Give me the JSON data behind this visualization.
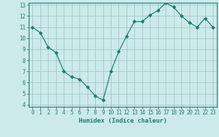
{
  "x": [
    0,
    1,
    2,
    3,
    4,
    5,
    6,
    7,
    8,
    9,
    10,
    11,
    12,
    13,
    14,
    15,
    16,
    17,
    18,
    19,
    20,
    21,
    22,
    23
  ],
  "y": [
    11,
    10.5,
    9.2,
    8.7,
    7.0,
    6.5,
    6.3,
    5.6,
    4.8,
    4.4,
    7.0,
    8.8,
    10.2,
    11.5,
    11.5,
    12.1,
    12.5,
    13.2,
    12.8,
    12.0,
    11.4,
    11.0,
    11.8,
    11.0
  ],
  "line_color": "#1a7a6e",
  "marker": "D",
  "marker_size": 2.5,
  "bg_color": "#cdeaea",
  "grid_color": "#a0cccc",
  "xlabel": "Humidex (Indice chaleur)",
  "ylim": [
    4,
    13
  ],
  "xlim": [
    -0.5,
    23.5
  ],
  "yticks": [
    4,
    5,
    6,
    7,
    8,
    9,
    10,
    11,
    12,
    13
  ],
  "xticks": [
    0,
    1,
    2,
    3,
    4,
    5,
    6,
    7,
    8,
    9,
    10,
    11,
    12,
    13,
    14,
    15,
    16,
    17,
    18,
    19,
    20,
    21,
    22,
    23
  ],
  "text_color": "#1a7a6e",
  "font_family": "monospace",
  "tick_fontsize": 5.5,
  "xlabel_fontsize": 6.5
}
